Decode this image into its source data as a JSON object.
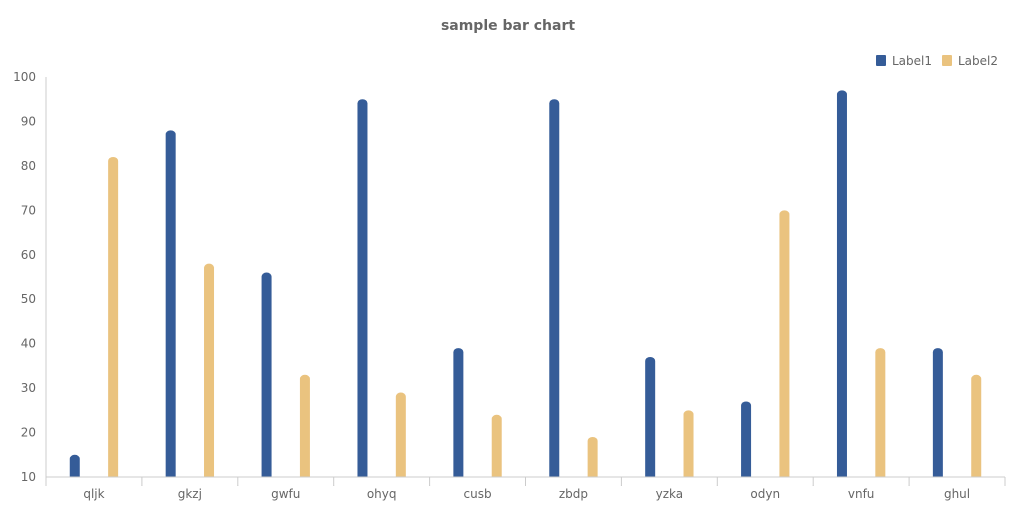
{
  "chart_data": {
    "type": "bar",
    "title": "sample bar chart",
    "xlabel": "",
    "ylabel": "",
    "categories": [
      "qljk",
      "gkzj",
      "gwfu",
      "ohyq",
      "cusb",
      "zbdp",
      "yzka",
      "odyn",
      "vnfu",
      "ghul"
    ],
    "series": [
      {
        "name": "Label1",
        "color": "#355c98",
        "values": [
          15,
          88,
          56,
          95,
          39,
          95,
          37,
          27,
          97,
          39
        ]
      },
      {
        "name": "Label2",
        "color": "#eac37f",
        "values": [
          82,
          58,
          33,
          29,
          24,
          19,
          25,
          70,
          39,
          33
        ]
      }
    ],
    "ylim": [
      10,
      100
    ],
    "yticks": [
      10,
      20,
      30,
      40,
      50,
      60,
      70,
      80,
      90,
      100
    ],
    "legend_position": "top-right",
    "grid": false
  }
}
